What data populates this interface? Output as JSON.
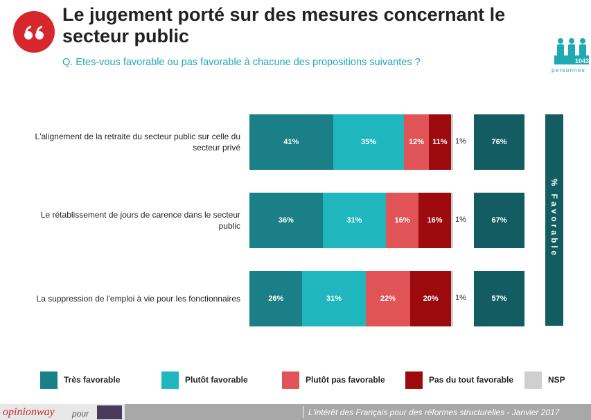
{
  "header": {
    "title": "Le jugement porté sur des mesures concernant le secteur public",
    "question": "Q. Etes-vous favorable ou pas favorable à chacune des propositions suivantes ?",
    "sample_size": "1043",
    "sample_unit": "personnes"
  },
  "chart_data": {
    "type": "bar",
    "orientation": "horizontal",
    "stacked": true,
    "categories": [
      "L'alignement de la retraite du secteur public sur celle du secteur privé",
      "Le rétablissement de jours de carence dans le secteur public",
      "La suppression de l'emploi à vie pour les fonctionnaires"
    ],
    "xlim": [
      0,
      100
    ],
    "series": [
      {
        "name": "Très favorable",
        "color": "#1a7f86",
        "values": [
          41,
          36,
          26
        ],
        "value_labels": [
          "41%",
          "36%",
          "26%"
        ]
      },
      {
        "name": "Plutôt favorable",
        "color": "#1fb6be",
        "values": [
          35,
          31,
          31
        ],
        "value_labels": [
          "35%",
          "31%",
          "31%"
        ]
      },
      {
        "name": "Plutôt pas favorable",
        "color": "#e05458",
        "values": [
          12,
          16,
          22
        ],
        "value_labels": [
          "12%",
          "16%",
          "22%"
        ]
      },
      {
        "name": "Pas du tout favorable",
        "color": "#9c0a0d",
        "values": [
          11,
          16,
          20
        ],
        "value_labels": [
          "11%",
          "16%",
          "20%"
        ]
      },
      {
        "name": "NSP",
        "color": "#cfcfcf",
        "values": [
          1,
          1,
          1
        ],
        "value_labels": [
          "1%",
          "1%",
          "1%"
        ]
      }
    ],
    "total": {
      "name": "% Favorable",
      "color": "#135d62",
      "values": [
        76,
        67,
        57
      ],
      "value_labels": [
        "76%",
        "67%",
        "57%"
      ]
    }
  },
  "footer": {
    "brand": "opinionway",
    "for": "pour",
    "study": "L'intérêt des Français pour des réformes structurelles - Janvier 2017"
  }
}
